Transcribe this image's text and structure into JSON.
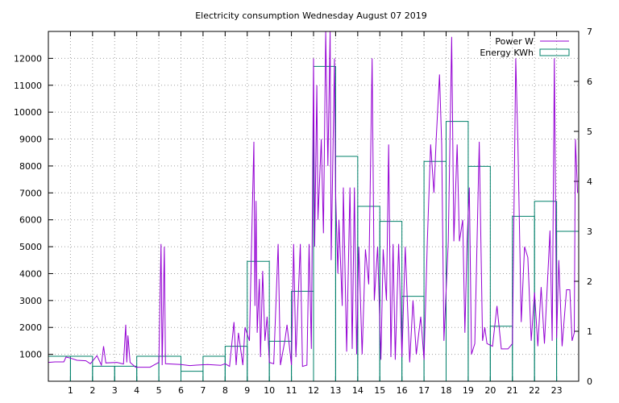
{
  "chart_data": {
    "type": "line",
    "title": "Electricity consumption Wednesday August 07 2019",
    "xlabel": "",
    "ylabel": "",
    "y2label": "",
    "xlim": [
      0,
      24
    ],
    "ylim": [
      0,
      13000
    ],
    "y2lim": [
      0,
      7
    ],
    "grid": true,
    "legend_position": "top-right",
    "x_ticks": [
      1,
      2,
      3,
      4,
      5,
      6,
      7,
      8,
      9,
      10,
      11,
      12,
      13,
      14,
      15,
      16,
      17,
      18,
      19,
      20,
      21,
      22,
      23
    ],
    "y_ticks": [
      1000,
      2000,
      3000,
      4000,
      5000,
      6000,
      7000,
      8000,
      9000,
      10000,
      11000,
      12000
    ],
    "y2_ticks": [
      0,
      1,
      2,
      3,
      4,
      5,
      6,
      7
    ],
    "series": [
      {
        "name": "Power W",
        "axis": "y1",
        "style": "line",
        "color": "#9400d3",
        "points": [
          [
            0.0,
            700
          ],
          [
            0.3,
            720
          ],
          [
            0.7,
            720
          ],
          [
            0.8,
            900
          ],
          [
            1.0,
            860
          ],
          [
            1.3,
            780
          ],
          [
            1.7,
            760
          ],
          [
            1.9,
            650
          ],
          [
            2.2,
            950
          ],
          [
            2.4,
            600
          ],
          [
            2.5,
            1300
          ],
          [
            2.6,
            680
          ],
          [
            3.1,
            700
          ],
          [
            3.4,
            640
          ],
          [
            3.5,
            2100
          ],
          [
            3.55,
            700
          ],
          [
            3.6,
            1700
          ],
          [
            3.7,
            700
          ],
          [
            3.95,
            520
          ],
          [
            4.6,
            520
          ],
          [
            5.0,
            700
          ],
          [
            5.1,
            5100
          ],
          [
            5.15,
            600
          ],
          [
            5.25,
            5000
          ],
          [
            5.3,
            650
          ],
          [
            6.0,
            620
          ],
          [
            6.4,
            580
          ],
          [
            6.7,
            600
          ],
          [
            7.2,
            620
          ],
          [
            7.8,
            590
          ],
          [
            8.0,
            650
          ],
          [
            8.2,
            550
          ],
          [
            8.4,
            2200
          ],
          [
            8.5,
            600
          ],
          [
            8.6,
            1800
          ],
          [
            8.8,
            600
          ],
          [
            8.9,
            2000
          ],
          [
            9.1,
            1500
          ],
          [
            9.2,
            5200
          ],
          [
            9.3,
            8900
          ],
          [
            9.35,
            2800
          ],
          [
            9.4,
            6700
          ],
          [
            9.45,
            1800
          ],
          [
            9.55,
            3800
          ],
          [
            9.6,
            900
          ],
          [
            9.7,
            4100
          ],
          [
            9.8,
            1500
          ],
          [
            9.9,
            2400
          ],
          [
            10.0,
            700
          ],
          [
            10.2,
            650
          ],
          [
            10.4,
            5100
          ],
          [
            10.5,
            600
          ],
          [
            10.7,
            1500
          ],
          [
            10.8,
            2100
          ],
          [
            11.0,
            600
          ],
          [
            11.1,
            5100
          ],
          [
            11.2,
            900
          ],
          [
            11.4,
            5100
          ],
          [
            11.5,
            550
          ],
          [
            11.7,
            600
          ],
          [
            11.8,
            5100
          ],
          [
            11.9,
            1200
          ],
          [
            12.0,
            12000
          ],
          [
            12.05,
            5000
          ],
          [
            12.15,
            11000
          ],
          [
            12.2,
            6000
          ],
          [
            12.35,
            9000
          ],
          [
            12.45,
            5500
          ],
          [
            12.55,
            13000
          ],
          [
            12.65,
            8000
          ],
          [
            12.75,
            13000
          ],
          [
            12.8,
            4500
          ],
          [
            12.95,
            12000
          ],
          [
            13.0,
            7000
          ],
          [
            13.1,
            4000
          ],
          [
            13.15,
            6000
          ],
          [
            13.3,
            2800
          ],
          [
            13.35,
            7200
          ],
          [
            13.5,
            1100
          ],
          [
            13.65,
            7200
          ],
          [
            13.75,
            1200
          ],
          [
            13.85,
            7200
          ],
          [
            13.95,
            1000
          ],
          [
            14.05,
            5000
          ],
          [
            14.2,
            1000
          ],
          [
            14.35,
            4900
          ],
          [
            14.5,
            3600
          ],
          [
            14.65,
            12000
          ],
          [
            14.75,
            3000
          ],
          [
            14.9,
            5000
          ],
          [
            15.05,
            800
          ],
          [
            15.15,
            4900
          ],
          [
            15.3,
            3000
          ],
          [
            15.4,
            8800
          ],
          [
            15.5,
            900
          ],
          [
            15.6,
            5100
          ],
          [
            15.7,
            800
          ],
          [
            15.85,
            5100
          ],
          [
            16.0,
            900
          ],
          [
            16.15,
            5000
          ],
          [
            16.35,
            700
          ],
          [
            16.5,
            3000
          ],
          [
            16.65,
            1000
          ],
          [
            16.85,
            2400
          ],
          [
            17.0,
            800
          ],
          [
            17.15,
            5200
          ],
          [
            17.3,
            8800
          ],
          [
            17.45,
            7000
          ],
          [
            17.55,
            9000
          ],
          [
            17.7,
            11400
          ],
          [
            17.8,
            8800
          ],
          [
            17.9,
            1500
          ],
          [
            18.1,
            5200
          ],
          [
            18.25,
            12800
          ],
          [
            18.35,
            5200
          ],
          [
            18.5,
            8800
          ],
          [
            18.6,
            5200
          ],
          [
            18.75,
            6000
          ],
          [
            18.85,
            1800
          ],
          [
            18.95,
            5200
          ],
          [
            19.05,
            7200
          ],
          [
            19.15,
            1000
          ],
          [
            19.3,
            1400
          ],
          [
            19.5,
            8900
          ],
          [
            19.65,
            1500
          ],
          [
            19.75,
            2000
          ],
          [
            19.85,
            1400
          ],
          [
            20.1,
            1300
          ],
          [
            20.3,
            2800
          ],
          [
            20.5,
            1200
          ],
          [
            20.8,
            1200
          ],
          [
            21.0,
            1400
          ],
          [
            21.15,
            12000
          ],
          [
            21.25,
            8800
          ],
          [
            21.4,
            2200
          ],
          [
            21.55,
            5000
          ],
          [
            21.7,
            4600
          ],
          [
            21.85,
            1500
          ],
          [
            22.0,
            3300
          ],
          [
            22.15,
            1300
          ],
          [
            22.3,
            3500
          ],
          [
            22.45,
            1400
          ],
          [
            22.7,
            5600
          ],
          [
            22.8,
            1500
          ],
          [
            22.9,
            12000
          ],
          [
            23.0,
            1600
          ],
          [
            23.1,
            4500
          ],
          [
            23.25,
            1300
          ],
          [
            23.45,
            3400
          ],
          [
            23.6,
            3400
          ],
          [
            23.7,
            1500
          ],
          [
            23.8,
            1800
          ],
          [
            23.85,
            9000
          ],
          [
            23.95,
            7000
          ]
        ]
      },
      {
        "name": "Energy KWh",
        "axis": "y2",
        "style": "steps",
        "color": "#00806a",
        "hourly": [
          0.5,
          0.5,
          0.3,
          0.3,
          0.5,
          0.5,
          0.2,
          0.5,
          0.7,
          2.4,
          0.8,
          1.8,
          6.3,
          4.5,
          3.5,
          3.2,
          1.7,
          4.4,
          5.2,
          4.3,
          1.1,
          3.3,
          3.6,
          3.0
        ]
      }
    ]
  }
}
